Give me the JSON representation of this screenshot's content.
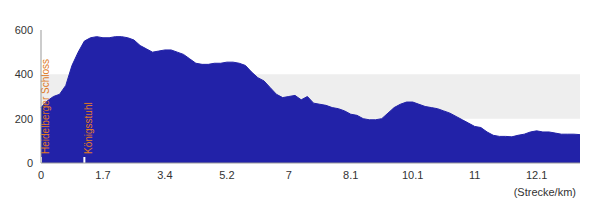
{
  "chart_data": {
    "type": "area",
    "x_label": "(Strecke/km)",
    "categories": [
      "0",
      null,
      null,
      null,
      null,
      null,
      null,
      null,
      null,
      null,
      "1.7",
      null,
      null,
      null,
      null,
      null,
      null,
      null,
      null,
      null,
      "3.4",
      null,
      null,
      null,
      null,
      null,
      null,
      null,
      null,
      null,
      "5.2",
      null,
      null,
      null,
      null,
      null,
      null,
      null,
      null,
      null,
      "7",
      null,
      null,
      null,
      null,
      null,
      null,
      null,
      null,
      null,
      "8.1",
      null,
      null,
      null,
      null,
      null,
      null,
      null,
      null,
      null,
      "10.1",
      null,
      null,
      null,
      null,
      null,
      null,
      null,
      null,
      null,
      "11",
      null,
      null,
      null,
      null,
      null,
      null,
      null,
      null,
      null,
      "12.1",
      null,
      null,
      null,
      null,
      null,
      null,
      null
    ],
    "values": [
      250,
      280,
      300,
      310,
      350,
      440,
      500,
      550,
      565,
      570,
      565,
      565,
      570,
      570,
      565,
      555,
      530,
      515,
      500,
      505,
      510,
      510,
      500,
      490,
      470,
      450,
      445,
      445,
      450,
      450,
      455,
      455,
      450,
      440,
      410,
      385,
      370,
      340,
      310,
      295,
      300,
      305,
      285,
      300,
      270,
      265,
      260,
      250,
      245,
      235,
      220,
      215,
      200,
      195,
      195,
      200,
      225,
      250,
      265,
      275,
      275,
      265,
      255,
      250,
      245,
      235,
      225,
      210,
      195,
      180,
      165,
      160,
      140,
      125,
      120,
      120,
      118,
      125,
      130,
      140,
      145,
      140,
      140,
      135,
      130,
      130,
      130,
      128
    ],
    "color": "#2222a8",
    "ylim": [
      0,
      600
    ],
    "yticks": [
      0,
      200,
      400,
      600
    ],
    "grid": true,
    "annotations": [
      {
        "text": "Heidelberger Schloss",
        "x": 0
      },
      {
        "text": "Königsstuhl",
        "x": 7
      }
    ]
  }
}
